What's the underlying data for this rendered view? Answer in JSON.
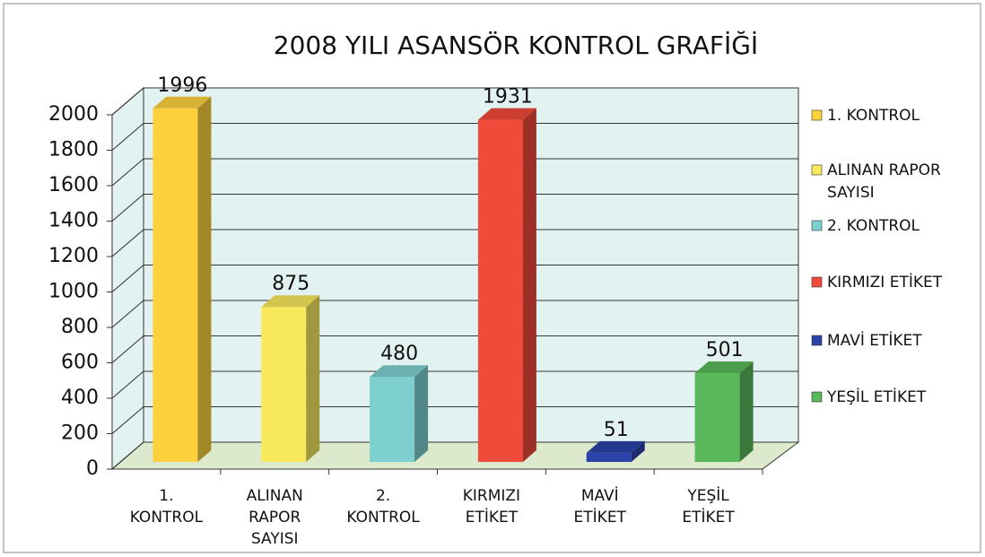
{
  "chart_data": {
    "type": "bar3d",
    "title": "2008 YILI ASANSÖR KONTROL GRAFİĞİ",
    "categories": [
      "1. KONTROL",
      "ALINAN RAPOR SAYISI",
      "2. KONTROL",
      "KIRMIZI ETİKET",
      "MAVİ ETİKET",
      "YEŞİL ETİKET"
    ],
    "values": [
      1996,
      875,
      480,
      1931,
      51,
      501
    ],
    "colors": [
      "#fdd13c",
      "#f8e85c",
      "#7ed0d0",
      "#f04a3a",
      "#2b42a8",
      "#59b95a"
    ],
    "ylim": [
      0,
      2000
    ],
    "yticks": [
      0,
      200,
      400,
      600,
      800,
      1000,
      1200,
      1400,
      1600,
      1800,
      2000
    ],
    "grid": true,
    "legend": "right"
  }
}
